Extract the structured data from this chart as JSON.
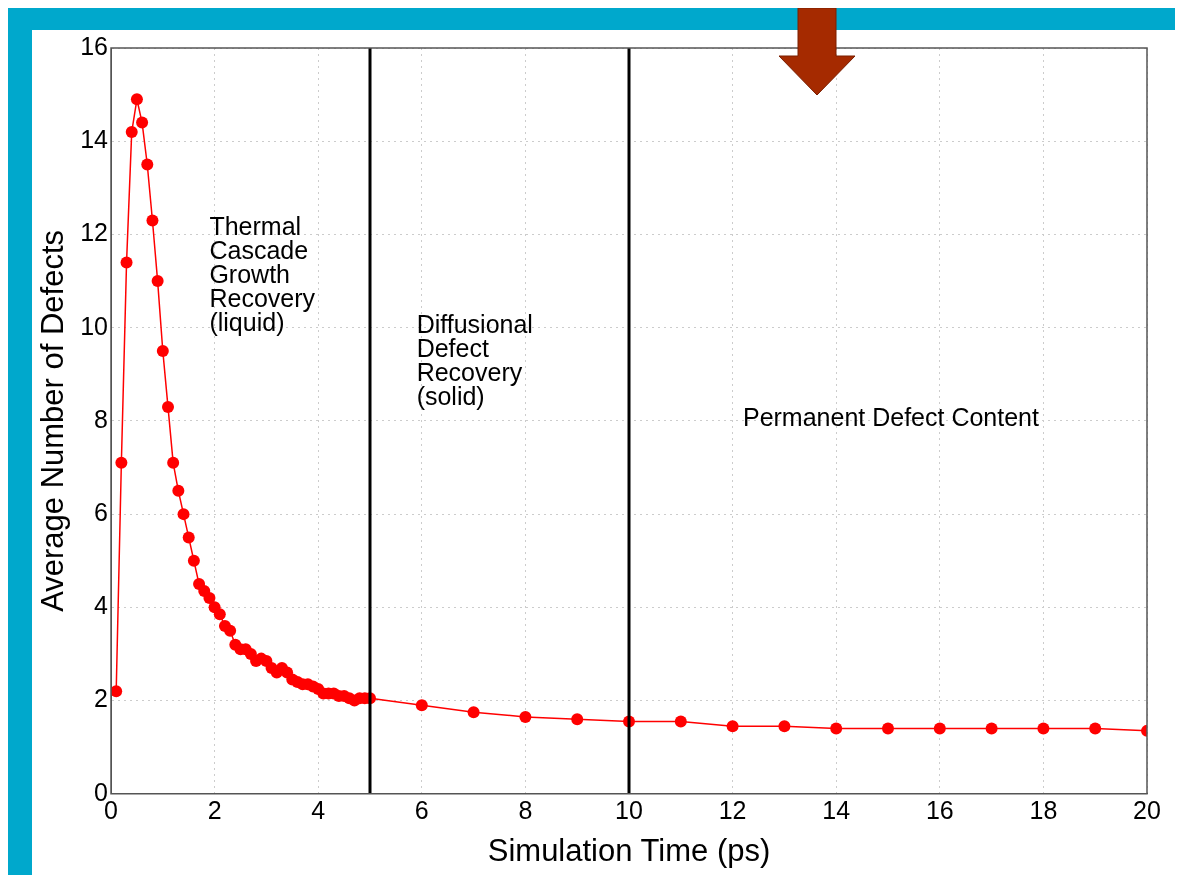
{
  "chart_data": {
    "type": "line",
    "xlabel": "Simulation Time (ps)",
    "ylabel": "Average Number of Defects",
    "x": [
      0.1,
      0.2,
      0.3,
      0.4,
      0.5,
      0.6,
      0.7,
      0.8,
      0.9,
      1.0,
      1.1,
      1.2,
      1.3,
      1.4,
      1.5,
      1.6,
      1.7,
      1.8,
      1.9,
      2.0,
      2.1,
      2.2,
      2.3,
      2.4,
      2.5,
      2.6,
      2.7,
      2.8,
      2.9,
      3.0,
      3.1,
      3.2,
      3.3,
      3.4,
      3.5,
      3.6,
      3.7,
      3.8,
      3.9,
      4.0,
      4.1,
      4.2,
      4.3,
      4.4,
      4.5,
      4.6,
      4.7,
      4.8,
      4.9,
      5.0,
      6,
      7,
      8,
      9,
      10,
      11,
      12,
      13,
      14,
      15,
      16,
      17,
      18,
      19,
      20
    ],
    "series": [
      {
        "color": "#ff0000",
        "values": [
          2.2,
          7.1,
          11.4,
          14.2,
          14.9,
          14.4,
          13.5,
          12.3,
          11.0,
          9.5,
          8.3,
          7.1,
          6.5,
          6.0,
          5.5,
          5.0,
          4.5,
          4.35,
          4.2,
          4.0,
          3.85,
          3.6,
          3.5,
          3.2,
          3.1,
          3.1,
          3.0,
          2.85,
          2.9,
          2.85,
          2.7,
          2.6,
          2.7,
          2.6,
          2.45,
          2.4,
          2.35,
          2.35,
          2.3,
          2.25,
          2.15,
          2.15,
          2.15,
          2.1,
          2.1,
          2.05,
          2.0,
          2.05,
          2.05,
          2.05,
          1.9,
          1.75,
          1.65,
          1.6,
          1.55,
          1.55,
          1.45,
          1.45,
          1.4,
          1.4,
          1.4,
          1.4,
          1.4,
          1.4,
          1.35
        ]
      }
    ],
    "xlim": [
      0,
      20
    ],
    "xticks": [
      0,
      2,
      4,
      6,
      8,
      10,
      12,
      14,
      16,
      18,
      20
    ],
    "ylim": [
      0,
      16
    ],
    "yticks": [
      0,
      2,
      4,
      6,
      8,
      10,
      12,
      14,
      16
    ],
    "grid": true,
    "marker": "circle",
    "line_style": "solid",
    "legend": false,
    "ref_lines": [
      {
        "axis": "x",
        "value": 5,
        "color": "#000000"
      },
      {
        "axis": "x",
        "value": 10,
        "color": "#000000"
      }
    ],
    "annotations": [
      "Thermal\nCascade\nGrowth\nRecovery\n(liquid)",
      "Diffusional\nDefect\nRecovery\n(solid)",
      "Permanent Defect Content"
    ]
  }
}
